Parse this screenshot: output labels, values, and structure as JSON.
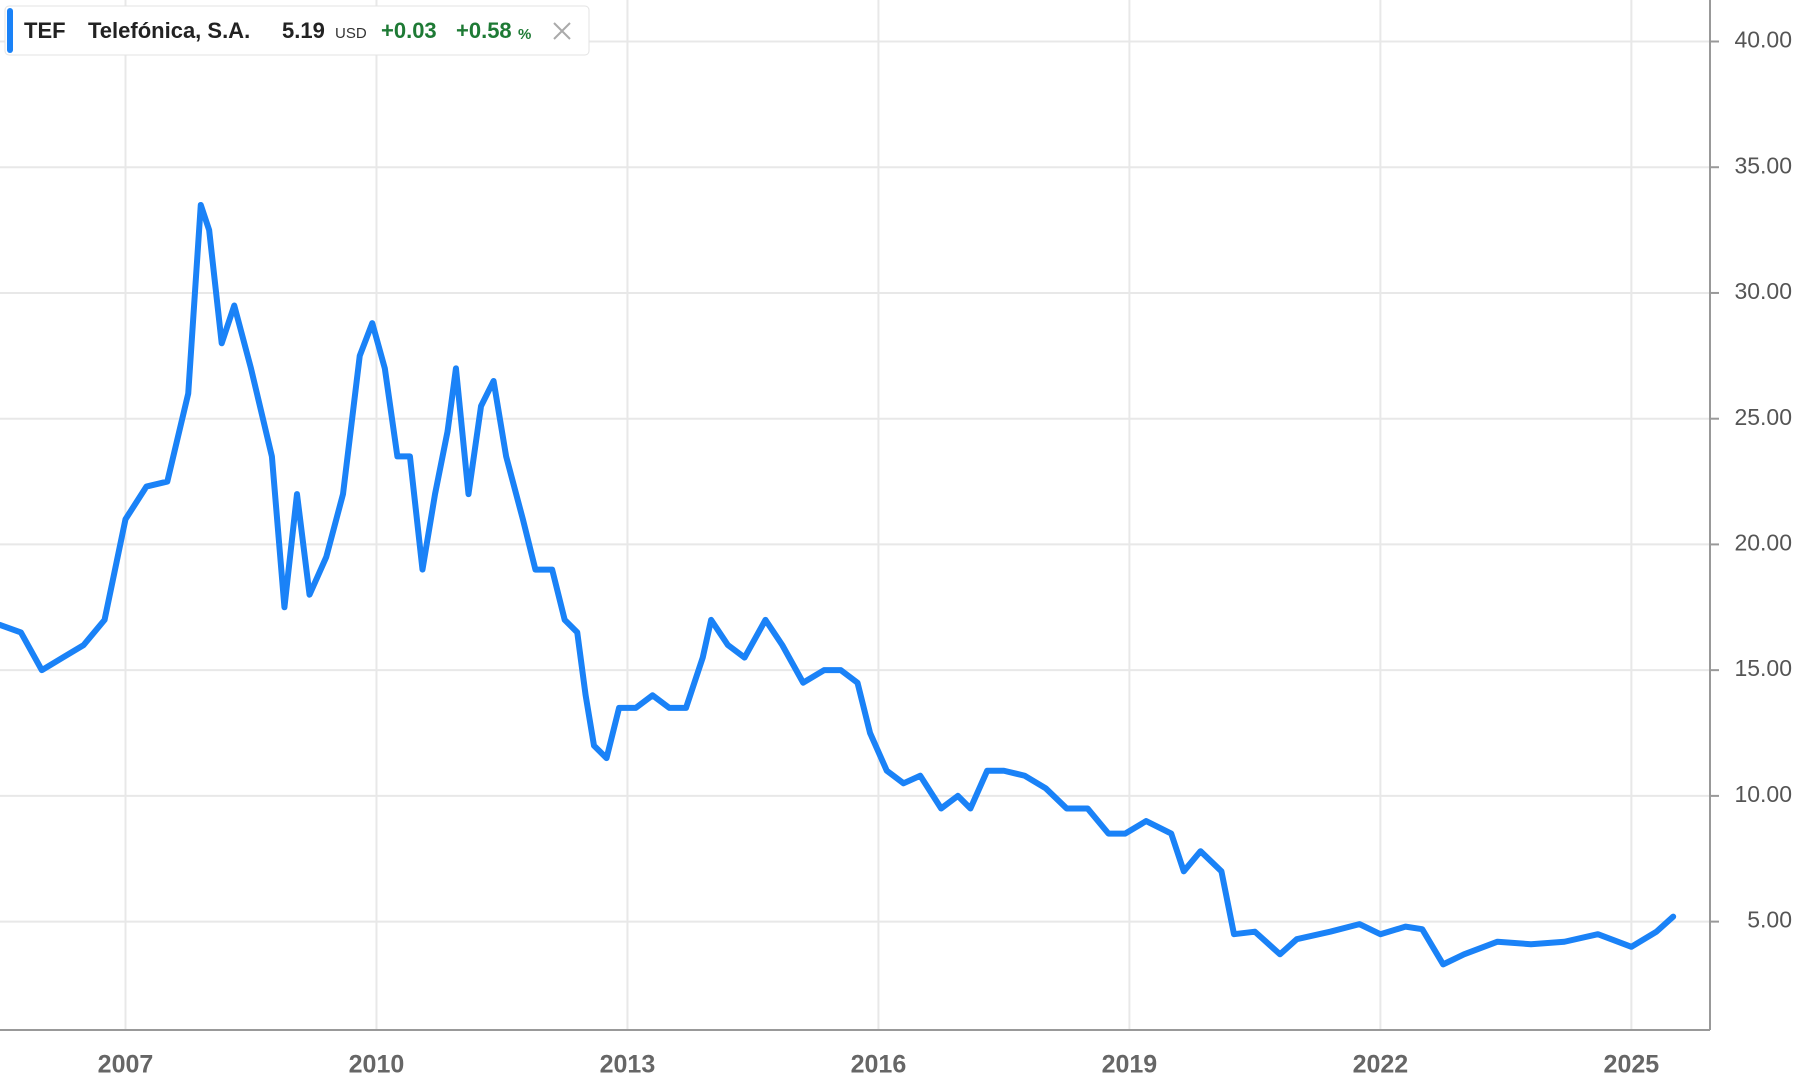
{
  "chart_data": {
    "type": "line",
    "header": {
      "company": "Telefónica, S.A.",
      "price": "5.19",
      "currency": "USD",
      "change": "+0.03",
      "change_percent": "+0.58",
      "percent_sign": "%"
    },
    "x": [
      2005.5,
      2005.75,
      2006.0,
      2006.25,
      2006.5,
      2006.75,
      2007.0,
      2007.25,
      2007.5,
      2007.75,
      2007.9,
      2008.0,
      2008.15,
      2008.3,
      2008.5,
      2008.75,
      2008.9,
      2009.05,
      2009.2,
      2009.4,
      2009.6,
      2009.8,
      2009.95,
      2010.1,
      2010.25,
      2010.4,
      2010.55,
      2010.7,
      2010.85,
      2010.95,
      2011.1,
      2011.25,
      2011.4,
      2011.55,
      2011.75,
      2011.9,
      2012.1,
      2012.25,
      2012.4,
      2012.5,
      2012.6,
      2012.75,
      2012.9,
      2013.1,
      2013.3,
      2013.5,
      2013.7,
      2013.9,
      2014.0,
      2014.2,
      2014.4,
      2014.65,
      2014.85,
      2015.1,
      2015.35,
      2015.55,
      2015.75,
      2015.9,
      2016.1,
      2016.3,
      2016.5,
      2016.75,
      2016.95,
      2017.1,
      2017.3,
      2017.5,
      2017.75,
      2018.0,
      2018.25,
      2018.5,
      2018.75,
      2018.95,
      2019.2,
      2019.5,
      2019.65,
      2019.85,
      2020.1,
      2020.25,
      2020.5,
      2020.8,
      2021.0,
      2021.4,
      2021.75,
      2022.0,
      2022.3,
      2022.5,
      2022.75,
      2023.0,
      2023.4,
      2023.8,
      2024.2,
      2024.6,
      2025.0,
      2025.3,
      2025.5
    ],
    "series": [
      {
        "name": "TEF",
        "color": "#1a82f7",
        "values": [
          16.8,
          16.5,
          15.0,
          15.5,
          16.0,
          17.0,
          21.0,
          22.3,
          22.5,
          26,
          33.5,
          32.5,
          28,
          29.5,
          27,
          23.5,
          17.5,
          22,
          18,
          19.5,
          22,
          27.5,
          28.8,
          27,
          23.5,
          23.5,
          19,
          22,
          24.5,
          27,
          22,
          25.5,
          26.5,
          23.5,
          21,
          19,
          19,
          17,
          16.5,
          14,
          12,
          11.5,
          13.5,
          13.5,
          14,
          13.5,
          13.5,
          15.5,
          17,
          16,
          15.5,
          17,
          16,
          14.5,
          15,
          15,
          14.5,
          12.5,
          11,
          10.5,
          10.8,
          9.5,
          10,
          9.5,
          11,
          11,
          10.8,
          10.3,
          9.5,
          9.5,
          8.5,
          8.5,
          9,
          8.5,
          7,
          7.8,
          7.0,
          4.5,
          4.6,
          3.7,
          4.3,
          4.6,
          4.9,
          4.5,
          4.8,
          4.7,
          3.3,
          3.7,
          4.2,
          4.1,
          4.2,
          4.5,
          4.0,
          4.6,
          5.2
        ]
      }
    ],
    "xlim": [
      2005.5,
      2025.94
    ],
    "xticks": [
      2007,
      2010,
      2013,
      2016,
      2019,
      2022,
      2025
    ],
    "ylim": [
      0.69,
      41.65
    ],
    "yticks": [
      {
        "value": 5,
        "label": "5.00"
      },
      {
        "value": 10,
        "label": "10.00"
      },
      {
        "value": 15,
        "label": "15.00"
      },
      {
        "value": 20,
        "label": "20.00"
      },
      {
        "value": 25,
        "label": "25.00"
      },
      {
        "value": 30,
        "label": "30.00"
      },
      {
        "value": 35,
        "label": "35.00"
      },
      {
        "value": 40,
        "label": "40.00"
      }
    ],
    "grid": true
  }
}
